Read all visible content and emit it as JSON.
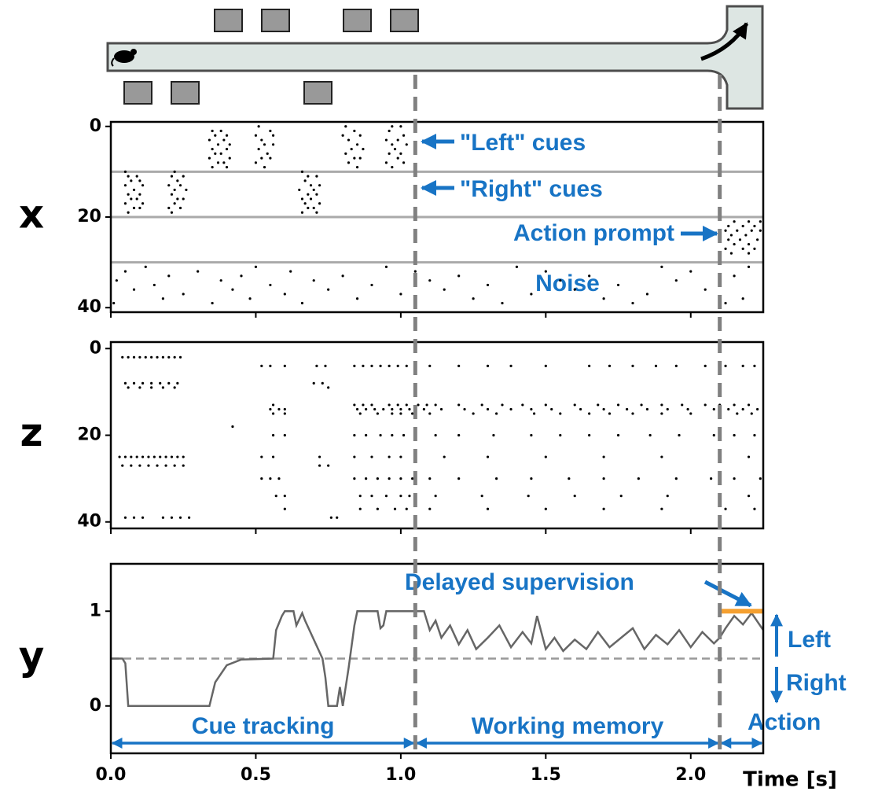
{
  "chart_data": [
    {
      "type": "raster",
      "ylabel": "x",
      "xlim": [
        0,
        2.25
      ],
      "xticks": [
        0,
        0.5,
        1,
        1.5,
        2
      ],
      "ylim": [
        41,
        -1
      ],
      "yticks": [
        0,
        20,
        40
      ],
      "group_bounds": [
        10,
        20,
        30
      ],
      "rows": [
        {
          "neuron": 0,
          "times": [
            0.51,
            0.81,
            0.97,
            1.0
          ]
        },
        {
          "neuron": 1,
          "times": [
            0.35,
            0.38,
            0.55,
            0.84,
            0.96
          ]
        },
        {
          "neuron": 2,
          "times": [
            0.36,
            0.4,
            0.5,
            0.56,
            0.8,
            0.86,
            1.01
          ]
        },
        {
          "neuron": 3,
          "times": [
            0.34,
            0.39,
            0.52,
            0.82,
            0.95,
            0.99
          ]
        },
        {
          "neuron": 4,
          "times": [
            0.37,
            0.41,
            0.53,
            0.56,
            0.85,
            0.97,
            1.02
          ]
        },
        {
          "neuron": 5,
          "times": [
            0.35,
            0.4,
            0.51,
            0.83,
            0.87,
            0.98
          ]
        },
        {
          "neuron": 6,
          "times": [
            0.36,
            0.38,
            0.54,
            0.81,
            0.96,
            1.0
          ]
        },
        {
          "neuron": 7,
          "times": [
            0.34,
            0.41,
            0.52,
            0.55,
            0.84,
            0.86,
            0.99
          ]
        },
        {
          "neuron": 8,
          "times": [
            0.37,
            0.39,
            0.5,
            0.82,
            0.95,
            1.01
          ]
        },
        {
          "neuron": 9,
          "times": [
            0.35,
            0.4,
            0.53,
            0.85,
            0.97
          ]
        },
        {
          "neuron": 10,
          "times": [
            0.05,
            0.22,
            0.66
          ]
        },
        {
          "neuron": 11,
          "times": [
            0.06,
            0.09,
            0.21,
            0.25,
            0.68,
            0.71
          ]
        },
        {
          "neuron": 12,
          "times": [
            0.07,
            0.1,
            0.23,
            0.67
          ]
        },
        {
          "neuron": 13,
          "times": [
            0.05,
            0.11,
            0.2,
            0.24,
            0.69,
            0.72
          ]
        },
        {
          "neuron": 14,
          "times": [
            0.08,
            0.22,
            0.26,
            0.65,
            0.7
          ]
        },
        {
          "neuron": 15,
          "times": [
            0.06,
            0.1,
            0.21,
            0.68,
            0.71
          ]
        },
        {
          "neuron": 16,
          "times": [
            0.07,
            0.09,
            0.23,
            0.25,
            0.66,
            0.69
          ]
        },
        {
          "neuron": 17,
          "times": [
            0.05,
            0.11,
            0.22,
            0.67,
            0.72
          ]
        },
        {
          "neuron": 18,
          "times": [
            0.08,
            0.1,
            0.2,
            0.24,
            0.68,
            0.7
          ]
        },
        {
          "neuron": 19,
          "times": [
            0.06,
            0.21,
            0.66,
            0.71
          ]
        },
        {
          "neuron": 21,
          "times": [
            2.15,
            2.2,
            2.24
          ]
        },
        {
          "neuron": 22,
          "times": [
            2.13,
            2.18,
            2.22
          ]
        },
        {
          "neuron": 23,
          "times": [
            2.12,
            2.16,
            2.21,
            2.24
          ]
        },
        {
          "neuron": 24,
          "times": [
            2.14,
            2.19
          ]
        },
        {
          "neuron": 25,
          "times": [
            2.13,
            2.17,
            2.23
          ]
        },
        {
          "neuron": 26,
          "times": [
            2.15,
            2.2
          ]
        },
        {
          "neuron": 27,
          "times": [
            2.12,
            2.18,
            2.22
          ]
        },
        {
          "neuron": 28,
          "times": [
            2.14,
            2.2
          ]
        },
        {
          "neuron": 31,
          "times": [
            0.12,
            0.5,
            0.95,
            1.4,
            1.9,
            2.2
          ]
        },
        {
          "neuron": 32,
          "times": [
            0.05,
            0.3,
            0.62,
            1.05,
            1.5,
            2.0
          ]
        },
        {
          "neuron": 33,
          "times": [
            0.2,
            0.45,
            0.8,
            1.2,
            1.65,
            2.15
          ]
        },
        {
          "neuron": 34,
          "times": [
            0.02,
            0.38,
            0.7,
            1.1,
            1.55,
            1.95
          ]
        },
        {
          "neuron": 35,
          "times": [
            0.15,
            0.55,
            0.9,
            1.3,
            1.75,
            2.1
          ]
        },
        {
          "neuron": 36,
          "times": [
            0.08,
            0.42,
            0.75,
            1.15,
            1.6,
            2.05
          ]
        },
        {
          "neuron": 37,
          "times": [
            0.25,
            0.6,
            1.0,
            1.45,
            1.85
          ]
        },
        {
          "neuron": 38,
          "times": [
            0.18,
            0.48,
            0.85,
            1.25,
            1.7,
            2.18
          ]
        },
        {
          "neuron": 39,
          "times": [
            0.01,
            0.35,
            0.66,
            1.35,
            1.8,
            2.12
          ]
        }
      ],
      "annotations": [
        "\"Left\" cues",
        "\"Right\" cues",
        "Action prompt",
        "Noise"
      ]
    },
    {
      "type": "raster",
      "ylabel": "z",
      "xlim": [
        0,
        2.25
      ],
      "xticks": [
        0,
        0.5,
        1,
        1.5,
        2
      ],
      "ylim": [
        41.5,
        -1.5
      ],
      "yticks": [
        0,
        20,
        40
      ],
      "rows": [
        {
          "neuron": 2,
          "times": [
            0.04,
            0.06,
            0.08,
            0.1,
            0.12,
            0.14,
            0.16,
            0.18,
            0.2,
            0.22,
            0.24
          ]
        },
        {
          "neuron": 4,
          "times": [
            0.52,
            0.55,
            0.6,
            0.71,
            0.74,
            0.84,
            0.87,
            0.9,
            0.93,
            0.96,
            0.99,
            1.02,
            1.05,
            1.1,
            1.2,
            1.3,
            1.38,
            1.5,
            1.65,
            1.72,
            1.8,
            1.88,
            1.95,
            2.05,
            2.12,
            2.18,
            2.22
          ]
        },
        {
          "neuron": 8,
          "times": [
            0.05,
            0.08,
            0.11,
            0.14,
            0.17,
            0.2,
            0.23,
            0.7,
            0.73
          ]
        },
        {
          "neuron": 9,
          "times": [
            0.06,
            0.1,
            0.14,
            0.18,
            0.22,
            0.75
          ]
        },
        {
          "neuron": 13,
          "times": [
            0.56,
            0.84,
            0.87,
            0.9,
            0.96,
            0.99,
            1.02,
            1.06,
            1.09,
            1.12,
            1.2,
            1.28,
            1.35,
            1.42,
            1.5,
            1.6,
            1.68,
            1.75,
            1.83,
            1.9,
            1.97,
            2.05,
            2.1,
            2.15,
            2.2
          ]
        },
        {
          "neuron": 14,
          "times": [
            0.55,
            0.58,
            0.6,
            0.85,
            0.88,
            0.91,
            0.94,
            0.97,
            1.0,
            1.03,
            1.08,
            1.14,
            1.22,
            1.3,
            1.38,
            1.45,
            1.52,
            1.62,
            1.7,
            1.78,
            1.85,
            1.92,
            1.99,
            2.08,
            2.13,
            2.18,
            2.23
          ]
        },
        {
          "neuron": 15,
          "times": [
            0.56,
            0.6,
            0.86,
            0.92,
            0.97,
            1.0,
            1.04,
            1.1,
            1.25,
            1.33,
            1.46,
            1.55,
            1.65,
            1.72,
            1.8,
            1.9,
            2.0,
            2.1,
            2.16,
            2.21
          ]
        },
        {
          "neuron": 18,
          "times": [
            0.42
          ]
        },
        {
          "neuron": 20,
          "times": [
            0.56,
            0.6,
            0.84,
            0.88,
            0.93,
            0.97,
            1.01,
            1.05,
            1.12,
            1.2,
            1.32,
            1.45,
            1.55,
            1.65,
            1.75,
            1.86,
            1.96,
            2.08,
            2.15,
            2.22
          ]
        },
        {
          "neuron": 25,
          "times": [
            0.03,
            0.05,
            0.07,
            0.09,
            0.11,
            0.13,
            0.15,
            0.17,
            0.19,
            0.21,
            0.23,
            0.25,
            0.52,
            0.56,
            0.72,
            0.84,
            0.9,
            0.96,
            1.0,
            1.05,
            1.15,
            1.3,
            1.5,
            1.7,
            1.9,
            2.1,
            2.2
          ]
        },
        {
          "neuron": 27,
          "times": [
            0.04,
            0.07,
            0.1,
            0.13,
            0.16,
            0.19,
            0.22,
            0.25,
            0.72,
            0.75
          ]
        },
        {
          "neuron": 30,
          "times": [
            0.52,
            0.55,
            0.58,
            0.84,
            0.88,
            0.92,
            0.96,
            1.0,
            1.04,
            1.1,
            1.2,
            1.33,
            1.45,
            1.58,
            1.7,
            1.82,
            1.95,
            2.07,
            2.15,
            2.24
          ]
        },
        {
          "neuron": 34,
          "times": [
            0.57,
            0.6,
            0.86,
            0.9,
            0.95,
            1.0,
            1.03,
            1.12,
            1.28,
            1.44,
            1.6,
            1.76,
            1.92,
            2.1,
            2.2
          ]
        },
        {
          "neuron": 37,
          "times": [
            0.6,
            0.86,
            0.92,
            0.98,
            1.02,
            1.1,
            1.3,
            1.5,
            1.7,
            1.9,
            2.12,
            2.22
          ]
        },
        {
          "neuron": 39,
          "times": [
            0.05,
            0.08,
            0.11,
            0.18,
            0.21,
            0.24,
            0.27,
            0.76,
            0.78
          ]
        }
      ]
    },
    {
      "type": "line",
      "ylabel": "y",
      "xlabel": "Time [s]",
      "xlim": [
        0,
        2.25
      ],
      "xticks": [
        {
          "value": 0,
          "label": "0.0"
        },
        {
          "value": 0.5,
          "label": "0.5"
        },
        {
          "value": 1,
          "label": "1.0"
        },
        {
          "value": 1.5,
          "label": "1.5"
        },
        {
          "value": 2,
          "label": "2.0"
        }
      ],
      "ylim": [
        -0.5,
        1.5
      ],
      "yticks": [
        0,
        1
      ],
      "color": "#666666",
      "baseline": 0.5,
      "x": [
        0,
        0.04,
        0.05,
        0.06,
        0.34,
        0.36,
        0.4,
        0.45,
        0.56,
        0.57,
        0.59,
        0.6,
        0.63,
        0.64,
        0.66,
        0.67,
        0.7,
        0.73,
        0.74,
        0.75,
        0.78,
        0.79,
        0.8,
        0.82,
        0.84,
        0.85,
        0.92,
        0.93,
        0.94,
        0.95,
        0.96,
        1.0,
        1.08,
        1.1,
        1.12,
        1.14,
        1.17,
        1.2,
        1.23,
        1.26,
        1.3,
        1.34,
        1.38,
        1.42,
        1.45,
        1.47,
        1.5,
        1.53,
        1.56,
        1.6,
        1.64,
        1.68,
        1.72,
        1.76,
        1.8,
        1.84,
        1.88,
        1.92,
        1.96,
        2.0,
        2.04,
        2.08,
        2.1,
        2.12,
        2.15,
        2.18,
        2.21,
        2.25
      ],
      "values": [
        0.5,
        0.5,
        0.45,
        0,
        0,
        0.25,
        0.43,
        0.49,
        0.5,
        0.8,
        0.95,
        1,
        1,
        0.85,
        0.98,
        0.9,
        0.7,
        0.5,
        0.3,
        0,
        0,
        0.2,
        0,
        0.4,
        0.85,
        1,
        1,
        0.82,
        0.85,
        1,
        1,
        1,
        1,
        0.8,
        0.9,
        0.72,
        0.85,
        0.65,
        0.8,
        0.6,
        0.72,
        0.85,
        0.62,
        0.78,
        0.66,
        0.95,
        0.6,
        0.72,
        0.58,
        0.7,
        0.6,
        0.78,
        0.62,
        0.72,
        0.82,
        0.6,
        0.75,
        0.65,
        0.8,
        0.62,
        0.78,
        0.66,
        0.72,
        0.82,
        0.95,
        0.86,
        0.98,
        0.8
      ],
      "target": {
        "start": 2.1,
        "end": 2.25,
        "value": 1,
        "color": "#f5a030",
        "label": "Delayed supervision"
      },
      "direction_labels": [
        "Left",
        "Right"
      ],
      "phases": [
        {
          "name": "Cue tracking",
          "start": 0,
          "end": 1.05
        },
        {
          "name": "Working memory",
          "start": 1.05,
          "end": 2.1
        },
        {
          "name": "Action",
          "start": 2.1,
          "end": 2.25
        }
      ]
    }
  ]
}
